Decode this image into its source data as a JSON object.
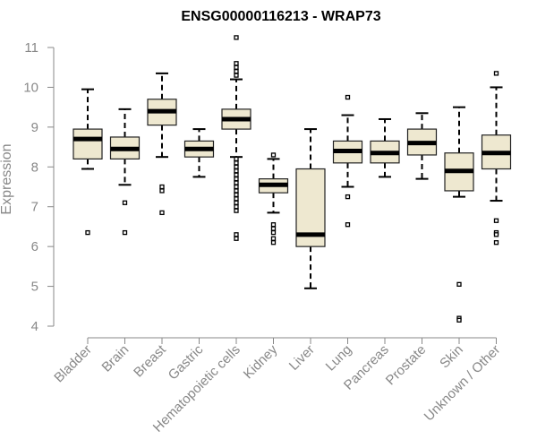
{
  "chart_data": {
    "type": "boxplot",
    "title": "ENSG00000116213 - WRAP73",
    "xlabel": "",
    "ylabel": "Expression",
    "ylim": [
      4,
      11
    ],
    "yticks": [
      "4",
      "5",
      "6",
      "7",
      "8",
      "9",
      "10",
      "11"
    ],
    "categories": [
      "Bladder",
      "Brain",
      "Breast",
      "Gastric",
      "Hematopoietic cells",
      "Kidney",
      "Liver",
      "Lung",
      "Pancreas",
      "Prostate",
      "Skin",
      "Unknown / Other"
    ],
    "boxes": [
      {
        "name": "Bladder",
        "whisker_low": 7.95,
        "q1": 8.2,
        "median": 8.7,
        "q3": 8.95,
        "whisker_high": 9.95,
        "outliers": [
          6.35
        ]
      },
      {
        "name": "Brain",
        "whisker_low": 7.55,
        "q1": 8.2,
        "median": 8.45,
        "q3": 8.75,
        "whisker_high": 9.45,
        "outliers": [
          7.1,
          6.35
        ]
      },
      {
        "name": "Breast",
        "whisker_low": 8.25,
        "q1": 9.05,
        "median": 9.4,
        "q3": 9.7,
        "whisker_high": 10.35,
        "outliers": [
          7.5,
          7.4,
          6.85
        ]
      },
      {
        "name": "Gastric",
        "whisker_low": 7.75,
        "q1": 8.25,
        "median": 8.45,
        "q3": 8.65,
        "whisker_high": 8.95,
        "outliers": []
      },
      {
        "name": "Hematopoietic cells",
        "whisker_low": 8.25,
        "q1": 8.95,
        "median": 9.2,
        "q3": 9.45,
        "whisker_high": 10.2,
        "outliers": [
          11.25,
          10.6,
          10.5,
          10.4,
          10.3,
          8.2,
          8.1,
          8.0,
          7.9,
          7.8,
          7.7,
          7.6,
          7.5,
          7.4,
          7.3,
          7.2,
          7.1,
          7.0,
          6.9,
          6.3,
          6.2
        ]
      },
      {
        "name": "Kidney",
        "whisker_low": 6.85,
        "q1": 7.35,
        "median": 7.55,
        "q3": 7.7,
        "whisker_high": 8.2,
        "outliers": [
          8.3,
          6.55,
          6.45,
          6.35,
          6.2,
          6.1
        ]
      },
      {
        "name": "Liver",
        "whisker_low": 4.95,
        "q1": 6.0,
        "median": 6.3,
        "q3": 7.95,
        "whisker_high": 8.95,
        "outliers": []
      },
      {
        "name": "Lung",
        "whisker_low": 7.5,
        "q1": 8.1,
        "median": 8.4,
        "q3": 8.65,
        "whisker_high": 9.3,
        "outliers": [
          9.75,
          7.25,
          6.55
        ]
      },
      {
        "name": "Pancreas",
        "whisker_low": 7.75,
        "q1": 8.1,
        "median": 8.35,
        "q3": 8.65,
        "whisker_high": 9.2,
        "outliers": []
      },
      {
        "name": "Prostate",
        "whisker_low": 7.7,
        "q1": 8.3,
        "median": 8.6,
        "q3": 8.95,
        "whisker_high": 9.35,
        "outliers": []
      },
      {
        "name": "Skin",
        "whisker_low": 7.25,
        "q1": 7.4,
        "median": 7.9,
        "q3": 8.35,
        "whisker_high": 9.5,
        "outliers": [
          5.05,
          4.2,
          4.15
        ]
      },
      {
        "name": "Unknown / Other",
        "whisker_low": 7.15,
        "q1": 7.95,
        "median": 8.35,
        "q3": 8.8,
        "whisker_high": 10.0,
        "outliers": [
          10.35,
          6.65,
          6.35,
          6.3,
          6.1
        ]
      }
    ],
    "colors": {
      "box_fill": "#EEE8D0",
      "box_stroke": "#222222",
      "median": "#000000",
      "axis": "#888888",
      "text": "#888888",
      "title": "#000000"
    },
    "grid": false
  }
}
